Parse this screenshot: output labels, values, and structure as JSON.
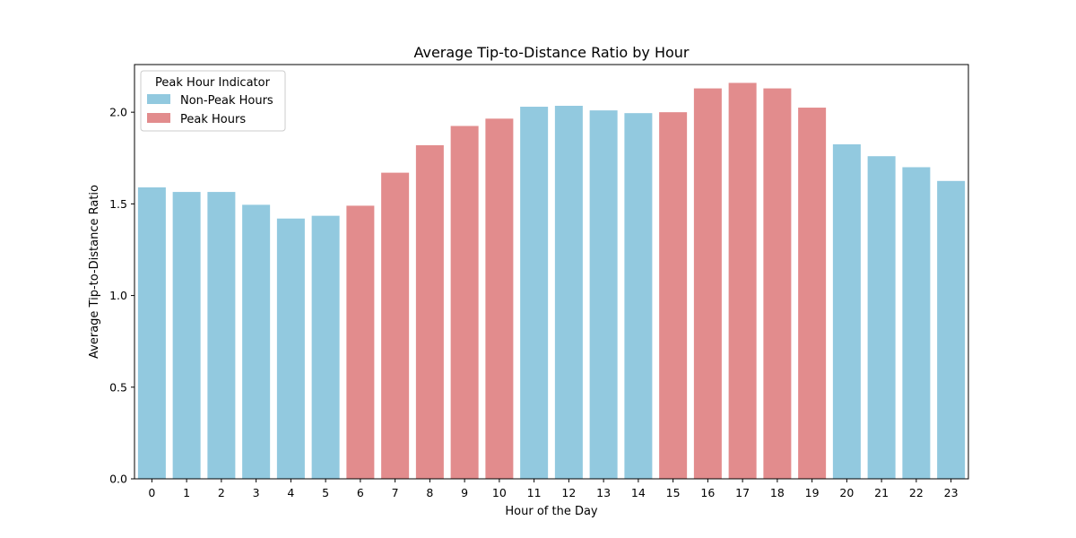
{
  "chart_data": {
    "type": "bar",
    "title": "Average Tip-to-Distance Ratio by Hour",
    "xlabel": "Hour of the Day",
    "ylabel": "Average Tip-to-Distance Ratio",
    "ylim": [
      0,
      2.26
    ],
    "yticks": [
      "0.0",
      "0.5",
      "1.0",
      "1.5",
      "2.0"
    ],
    "categories": [
      "0",
      "1",
      "2",
      "3",
      "4",
      "5",
      "6",
      "7",
      "8",
      "9",
      "10",
      "11",
      "12",
      "13",
      "14",
      "15",
      "16",
      "17",
      "18",
      "19",
      "20",
      "21",
      "22",
      "23"
    ],
    "values": [
      1.59,
      1.565,
      1.565,
      1.495,
      1.42,
      1.435,
      1.49,
      1.67,
      1.82,
      1.925,
      1.965,
      2.03,
      2.035,
      2.01,
      1.995,
      2.0,
      2.13,
      2.16,
      2.13,
      2.025,
      1.825,
      1.76,
      1.7,
      1.625
    ],
    "groups": [
      "Non-Peak Hours",
      "Non-Peak Hours",
      "Non-Peak Hours",
      "Non-Peak Hours",
      "Non-Peak Hours",
      "Non-Peak Hours",
      "Peak Hours",
      "Peak Hours",
      "Peak Hours",
      "Peak Hours",
      "Peak Hours",
      "Non-Peak Hours",
      "Non-Peak Hours",
      "Non-Peak Hours",
      "Non-Peak Hours",
      "Peak Hours",
      "Peak Hours",
      "Peak Hours",
      "Peak Hours",
      "Peak Hours",
      "Non-Peak Hours",
      "Non-Peak Hours",
      "Non-Peak Hours",
      "Non-Peak Hours"
    ],
    "legend": {
      "title": "Peak Hour Indicator",
      "position": "top-left",
      "entries": [
        {
          "label": "Non-Peak Hours",
          "color": "#92c9df"
        },
        {
          "label": "Peak Hours",
          "color": "#e28c8d"
        }
      ]
    },
    "grid": false
  }
}
